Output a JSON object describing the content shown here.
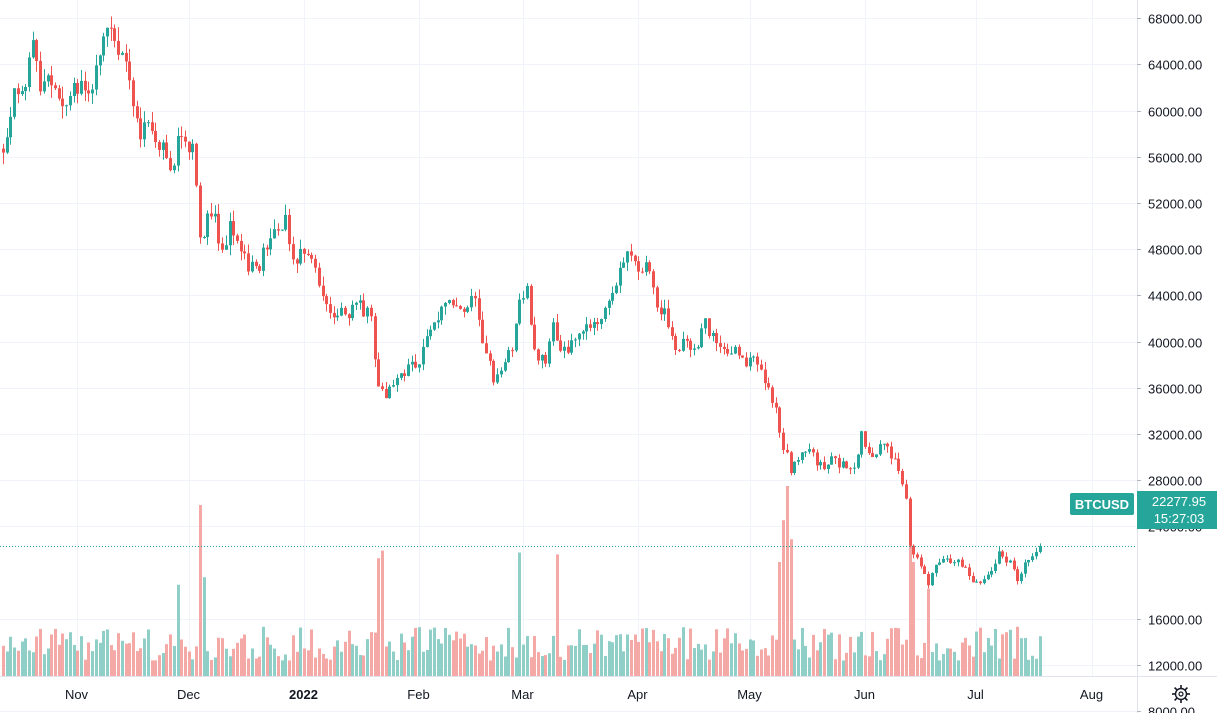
{
  "chart_data": {
    "type": "candlestick",
    "symbol": "BTCUSD",
    "last_price": "22277.95",
    "countdown": "15:27:03",
    "ylim": [
      6000,
      69500
    ],
    "yticks": [
      "8000.00",
      "12000.00",
      "16000.00",
      "24000.00",
      "28000.00",
      "32000.00",
      "36000.00",
      "40000.00",
      "44000.00",
      "48000.00",
      "52000.00",
      "56000.00",
      "60000.00",
      "64000.00",
      "68000.00"
    ],
    "xticks": [
      {
        "label": "Nov",
        "date": "2021-11-01",
        "bold": false
      },
      {
        "label": "Dec",
        "date": "2021-12-01",
        "bold": false
      },
      {
        "label": "2022",
        "date": "2022-01-01",
        "bold": true
      },
      {
        "label": "Feb",
        "date": "2022-02-01",
        "bold": false
      },
      {
        "label": "Mar",
        "date": "2022-03-01",
        "bold": false
      },
      {
        "label": "Apr",
        "date": "2022-04-01",
        "bold": false
      },
      {
        "label": "May",
        "date": "2022-05-01",
        "bold": false
      },
      {
        "label": "Jun",
        "date": "2022-06-01",
        "bold": false
      },
      {
        "label": "Jul",
        "date": "2022-07-01",
        "bold": false
      },
      {
        "label": "Aug",
        "date": "2022-08-01",
        "bold": false
      }
    ],
    "xrange": [
      "2021-10-12",
      "2022-08-10"
    ],
    "grid": true,
    "colors": {
      "up": "#26a69a",
      "down": "#ef5350",
      "up_volume": "#8fcfc8",
      "down_volume": "#f4a9a7",
      "grid": "#f0f3fa",
      "badge": "#26a69a",
      "price_line": "#26a69a"
    },
    "path": [
      [
        "2021-10-12",
        57000
      ],
      [
        "2021-10-15",
        61500
      ],
      [
        "2021-10-17",
        61000
      ],
      [
        "2021-10-20",
        65500
      ],
      [
        "2021-10-22",
        61500
      ],
      [
        "2021-10-25",
        62500
      ],
      [
        "2021-10-28",
        59500
      ],
      [
        "2021-10-31",
        61500
      ],
      [
        "2021-11-02",
        62500
      ],
      [
        "2021-11-05",
        61500
      ],
      [
        "2021-11-08",
        66000
      ],
      [
        "2021-11-10",
        67500
      ],
      [
        "2021-11-12",
        64500
      ],
      [
        "2021-11-14",
        64000
      ],
      [
        "2021-11-16",
        60000
      ],
      [
        "2021-11-18",
        57000
      ],
      [
        "2021-11-20",
        59500
      ],
      [
        "2021-11-22",
        56500
      ],
      [
        "2021-11-24",
        57500
      ],
      [
        "2021-11-26",
        54500
      ],
      [
        "2021-11-28",
        57500
      ],
      [
        "2021-11-30",
        57000
      ],
      [
        "2021-12-02",
        56500
      ],
      [
        "2021-12-04",
        49000
      ],
      [
        "2021-12-06",
        50500
      ],
      [
        "2021-12-08",
        50500
      ],
      [
        "2021-12-10",
        47500
      ],
      [
        "2021-12-12",
        50000
      ],
      [
        "2021-12-14",
        48500
      ],
      [
        "2021-12-17",
        46500
      ],
      [
        "2021-12-20",
        46800
      ],
      [
        "2021-12-23",
        49500
      ],
      [
        "2021-12-27",
        50500
      ],
      [
        "2021-12-29",
        47200
      ],
      [
        "2022-01-01",
        47600
      ],
      [
        "2022-01-04",
        46300
      ],
      [
        "2022-01-06",
        43300
      ],
      [
        "2022-01-09",
        41800
      ],
      [
        "2022-01-11",
        43000
      ],
      [
        "2022-01-13",
        42500
      ],
      [
        "2022-01-16",
        43000
      ],
      [
        "2022-01-19",
        42000
      ],
      [
        "2022-01-21",
        36000
      ],
      [
        "2022-01-23",
        35500
      ],
      [
        "2022-01-26",
        36800
      ],
      [
        "2022-01-29",
        37800
      ],
      [
        "2022-02-01",
        38500
      ],
      [
        "2022-02-04",
        41500
      ],
      [
        "2022-02-06",
        42200
      ],
      [
        "2022-02-09",
        44000
      ],
      [
        "2022-02-11",
        42500
      ],
      [
        "2022-02-13",
        42100
      ],
      [
        "2022-02-16",
        44200
      ],
      [
        "2022-02-18",
        40000
      ],
      [
        "2022-02-21",
        37000
      ],
      [
        "2022-02-24",
        38200
      ],
      [
        "2022-02-26",
        39500
      ],
      [
        "2022-02-28",
        43200
      ],
      [
        "2022-03-02",
        44200
      ],
      [
        "2022-03-04",
        39100
      ],
      [
        "2022-03-07",
        38000
      ],
      [
        "2022-03-09",
        41900
      ],
      [
        "2022-03-11",
        38700
      ],
      [
        "2022-03-14",
        39600
      ],
      [
        "2022-03-16",
        41100
      ],
      [
        "2022-03-18",
        41700
      ],
      [
        "2022-03-21",
        41000
      ],
      [
        "2022-03-23",
        42800
      ],
      [
        "2022-03-25",
        44300
      ],
      [
        "2022-03-28",
        47500
      ],
      [
        "2022-03-30",
        47300
      ],
      [
        "2022-04-01",
        46300
      ],
      [
        "2022-04-04",
        46500
      ],
      [
        "2022-04-06",
        43100
      ],
      [
        "2022-04-08",
        42700
      ],
      [
        "2022-04-11",
        39600
      ],
      [
        "2022-04-14",
        39900
      ],
      [
        "2022-04-17",
        39700
      ],
      [
        "2022-04-19",
        41500
      ],
      [
        "2022-04-21",
        40500
      ],
      [
        "2022-04-24",
        39500
      ],
      [
        "2022-04-27",
        39200
      ],
      [
        "2022-04-30",
        37700
      ],
      [
        "2022-05-02",
        38500
      ],
      [
        "2022-05-05",
        36500
      ],
      [
        "2022-05-08",
        34000
      ],
      [
        "2022-05-10",
        31000
      ],
      [
        "2022-05-12",
        29000
      ],
      [
        "2022-05-14",
        30000
      ],
      [
        "2022-05-17",
        30400
      ],
      [
        "2022-05-20",
        29200
      ],
      [
        "2022-05-23",
        29700
      ],
      [
        "2022-05-26",
        29200
      ],
      [
        "2022-05-29",
        29400
      ],
      [
        "2022-05-31",
        31800
      ],
      [
        "2022-06-03",
        29700
      ],
      [
        "2022-06-06",
        31300
      ],
      [
        "2022-06-08",
        30100
      ],
      [
        "2022-06-10",
        29100
      ],
      [
        "2022-06-12",
        26600
      ],
      [
        "2022-06-13",
        22500
      ],
      [
        "2022-06-15",
        21000
      ],
      [
        "2022-06-18",
        19000
      ],
      [
        "2022-06-20",
        20600
      ],
      [
        "2022-06-23",
        21200
      ],
      [
        "2022-06-26",
        21000
      ],
      [
        "2022-06-28",
        20300
      ],
      [
        "2022-06-30",
        19300
      ],
      [
        "2022-07-02",
        19300
      ],
      [
        "2022-07-05",
        20200
      ],
      [
        "2022-07-07",
        21600
      ],
      [
        "2022-07-10",
        20800
      ],
      [
        "2022-07-12",
        19300
      ],
      [
        "2022-07-14",
        20600
      ],
      [
        "2022-07-16",
        21200
      ],
      [
        "2022-07-18",
        22277.95
      ]
    ],
    "volume_spikes": [
      [
        "2021-11-28",
        0.48
      ],
      [
        "2021-12-04",
        0.9
      ],
      [
        "2021-12-05",
        0.52
      ],
      [
        "2022-01-21",
        0.62
      ],
      [
        "2022-01-22",
        0.66
      ],
      [
        "2022-02-28",
        0.65
      ],
      [
        "2022-03-10",
        0.64
      ],
      [
        "2022-05-09",
        0.6
      ],
      [
        "2022-05-10",
        0.82
      ],
      [
        "2022-05-11",
        1.0
      ],
      [
        "2022-05-12",
        0.72
      ],
      [
        "2022-06-13",
        0.8
      ],
      [
        "2022-06-14",
        0.6
      ],
      [
        "2022-06-18",
        0.46
      ]
    ]
  }
}
